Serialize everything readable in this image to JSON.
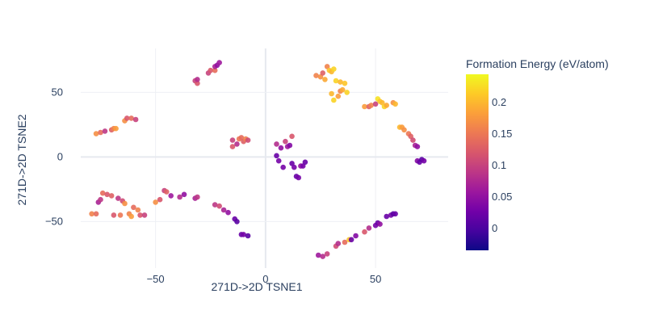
{
  "chart_data": {
    "type": "scatter",
    "title": "",
    "xlabel": "271D->2D TSNE1",
    "ylabel": "271D->2D TSNE2",
    "xlim": [
      -84,
      83
    ],
    "ylim": [
      -86,
      84
    ],
    "xticks": [
      -50,
      0,
      50
    ],
    "yticks": [
      -50,
      0,
      50
    ],
    "xtick_labels": [
      "−50",
      "0",
      "50"
    ],
    "ytick_labels": [
      "−50",
      "0",
      "50"
    ],
    "grid": true,
    "colorbar": {
      "title": "Formation Energy (eV/atom)",
      "range": [
        -0.035,
        0.245
      ],
      "ticks": [
        0,
        0.05,
        0.1,
        0.15,
        0.2
      ],
      "tick_labels": [
        "0",
        "0.05",
        "0.1",
        "0.15",
        "0.2"
      ],
      "colorscale": [
        "#0d0887",
        "#46039f",
        "#7201a8",
        "#9c179e",
        "#bd3786",
        "#d8576b",
        "#ed7953",
        "#fb9f3a",
        "#fdca26",
        "#f0f921"
      ]
    },
    "points": [
      {
        "x": -77,
        "y": 18,
        "c": 0.17
      },
      {
        "x": -75,
        "y": 19,
        "c": 0.14
      },
      {
        "x": -73,
        "y": 20,
        "c": 0.09
      },
      {
        "x": -70,
        "y": 21,
        "c": 0.13
      },
      {
        "x": -69,
        "y": 22,
        "c": 0.16
      },
      {
        "x": -68,
        "y": 22,
        "c": 0.18
      },
      {
        "x": -64,
        "y": 28,
        "c": 0.17
      },
      {
        "x": -63,
        "y": 30,
        "c": 0.12
      },
      {
        "x": -61,
        "y": 30,
        "c": 0.14
      },
      {
        "x": -59,
        "y": 29,
        "c": 0.1
      },
      {
        "x": -32,
        "y": 59,
        "c": 0.1
      },
      {
        "x": -31,
        "y": 57,
        "c": 0.12
      },
      {
        "x": -31,
        "y": 60,
        "c": 0.08
      },
      {
        "x": -26,
        "y": 65,
        "c": 0.1
      },
      {
        "x": -25,
        "y": 67,
        "c": 0.12
      },
      {
        "x": -23,
        "y": 67,
        "c": 0.14
      },
      {
        "x": -23,
        "y": 70,
        "c": 0.07
      },
      {
        "x": -22,
        "y": 71,
        "c": 0.05
      },
      {
        "x": -21,
        "y": 73,
        "c": 0.06
      },
      {
        "x": -15,
        "y": 8,
        "c": 0.12
      },
      {
        "x": -15,
        "y": 13,
        "c": 0.1
      },
      {
        "x": -13,
        "y": 10,
        "c": 0.08
      },
      {
        "x": -12,
        "y": 14,
        "c": 0.15
      },
      {
        "x": -11,
        "y": 15,
        "c": 0.14
      },
      {
        "x": -10,
        "y": 12,
        "c": 0.13
      },
      {
        "x": -9,
        "y": 14,
        "c": 0.16
      },
      {
        "x": -8,
        "y": 13,
        "c": 0.11
      },
      {
        "x": 5,
        "y": 10,
        "c": 0.08
      },
      {
        "x": 5,
        "y": 1,
        "c": 0.02
      },
      {
        "x": 6,
        "y": -3,
        "c": 0.03
      },
      {
        "x": 7,
        "y": 7,
        "c": 0.05
      },
      {
        "x": 8,
        "y": -8,
        "c": 0.03
      },
      {
        "x": 9,
        "y": 12,
        "c": 0.1
      },
      {
        "x": 10,
        "y": 8,
        "c": 0.06
      },
      {
        "x": 11,
        "y": 9,
        "c": 0.04
      },
      {
        "x": 12,
        "y": -5,
        "c": 0.02
      },
      {
        "x": 12,
        "y": 16,
        "c": 0.12
      },
      {
        "x": 13,
        "y": -8,
        "c": 0.03
      },
      {
        "x": 14,
        "y": -15,
        "c": 0.02
      },
      {
        "x": 15,
        "y": -16,
        "c": 0.03
      },
      {
        "x": 16,
        "y": -7,
        "c": 0.05
      },
      {
        "x": 17,
        "y": -7,
        "c": 0.03
      },
      {
        "x": 18,
        "y": -4,
        "c": 0.02
      },
      {
        "x": 23,
        "y": 63,
        "c": 0.16
      },
      {
        "x": 25,
        "y": 62,
        "c": 0.17
      },
      {
        "x": 26,
        "y": 65,
        "c": 0.13
      },
      {
        "x": 27,
        "y": 60,
        "c": 0.19
      },
      {
        "x": 28,
        "y": 70,
        "c": 0.16
      },
      {
        "x": 29,
        "y": 67,
        "c": 0.21
      },
      {
        "x": 30,
        "y": 66,
        "c": 0.2
      },
      {
        "x": 31,
        "y": 68,
        "c": 0.22
      },
      {
        "x": 32,
        "y": 59,
        "c": 0.22
      },
      {
        "x": 34,
        "y": 58,
        "c": 0.2
      },
      {
        "x": 36,
        "y": 57,
        "c": 0.21
      },
      {
        "x": 30,
        "y": 49,
        "c": 0.2
      },
      {
        "x": 31,
        "y": 44,
        "c": 0.22
      },
      {
        "x": 33,
        "y": 47,
        "c": 0.18
      },
      {
        "x": 34,
        "y": 51,
        "c": 0.16
      },
      {
        "x": 35,
        "y": 52,
        "c": 0.19
      },
      {
        "x": 37,
        "y": 50,
        "c": 0.22
      },
      {
        "x": 45,
        "y": 39,
        "c": 0.18
      },
      {
        "x": 47,
        "y": 39,
        "c": 0.13
      },
      {
        "x": 48,
        "y": 40,
        "c": 0.16
      },
      {
        "x": 50,
        "y": 41,
        "c": 0.1
      },
      {
        "x": 51,
        "y": 45,
        "c": 0.23
      },
      {
        "x": 52,
        "y": 43,
        "c": 0.21
      },
      {
        "x": 53,
        "y": 42,
        "c": 0.2
      },
      {
        "x": 54,
        "y": 39,
        "c": 0.22
      },
      {
        "x": 55,
        "y": 40,
        "c": 0.19
      },
      {
        "x": 58,
        "y": 42,
        "c": 0.17
      },
      {
        "x": 59,
        "y": 41,
        "c": 0.2
      },
      {
        "x": 61,
        "y": 23,
        "c": 0.2
      },
      {
        "x": 62,
        "y": 23,
        "c": 0.18
      },
      {
        "x": 63,
        "y": 21,
        "c": 0.17
      },
      {
        "x": 65,
        "y": 18,
        "c": 0.15
      },
      {
        "x": 66,
        "y": 16,
        "c": 0.13
      },
      {
        "x": 67,
        "y": 13,
        "c": 0.11
      },
      {
        "x": 68,
        "y": 9,
        "c": 0.07
      },
      {
        "x": 69,
        "y": 8,
        "c": 0.05
      },
      {
        "x": 69,
        "y": -3,
        "c": 0.04
      },
      {
        "x": 70,
        "y": -4,
        "c": 0.02
      },
      {
        "x": 71,
        "y": -2,
        "c": 0.01
      },
      {
        "x": 72,
        "y": -3,
        "c": 0.03
      },
      {
        "x": -79,
        "y": -44,
        "c": 0.16
      },
      {
        "x": -77,
        "y": -44,
        "c": 0.14
      },
      {
        "x": -76,
        "y": -35,
        "c": 0.07
      },
      {
        "x": -75,
        "y": -33,
        "c": 0.09
      },
      {
        "x": -74,
        "y": -28,
        "c": 0.14
      },
      {
        "x": -72,
        "y": -29,
        "c": 0.12
      },
      {
        "x": -70,
        "y": -30,
        "c": 0.13
      },
      {
        "x": -69,
        "y": -45,
        "c": 0.12
      },
      {
        "x": -67,
        "y": -32,
        "c": 0.09
      },
      {
        "x": -66,
        "y": -45,
        "c": 0.15
      },
      {
        "x": -65,
        "y": -34,
        "c": 0.11
      },
      {
        "x": -64,
        "y": -36,
        "c": 0.17
      },
      {
        "x": -62,
        "y": -44,
        "c": 0.16
      },
      {
        "x": -61,
        "y": -46,
        "c": 0.18
      },
      {
        "x": -60,
        "y": -39,
        "c": 0.14
      },
      {
        "x": -58,
        "y": -41,
        "c": 0.16
      },
      {
        "x": -57,
        "y": -45,
        "c": 0.12
      },
      {
        "x": -55,
        "y": -45,
        "c": 0.1
      },
      {
        "x": -50,
        "y": -35,
        "c": 0.17
      },
      {
        "x": -48,
        "y": -33,
        "c": 0.12
      },
      {
        "x": -46,
        "y": -26,
        "c": 0.1
      },
      {
        "x": -45,
        "y": -27,
        "c": 0.13
      },
      {
        "x": -43,
        "y": -30,
        "c": 0.06
      },
      {
        "x": -39,
        "y": -31,
        "c": 0.08
      },
      {
        "x": -37,
        "y": -29,
        "c": 0.05
      },
      {
        "x": -32,
        "y": -32,
        "c": 0.07
      },
      {
        "x": -31,
        "y": -31,
        "c": 0.09
      },
      {
        "x": -23,
        "y": -37,
        "c": 0.09
      },
      {
        "x": -21,
        "y": -38,
        "c": 0.11
      },
      {
        "x": -19,
        "y": -41,
        "c": 0.07
      },
      {
        "x": -17,
        "y": -43,
        "c": 0.05
      },
      {
        "x": -14,
        "y": -48,
        "c": 0.02
      },
      {
        "x": -13,
        "y": -50,
        "c": 0.01
      },
      {
        "x": -11,
        "y": -60,
        "c": 0.02
      },
      {
        "x": -10,
        "y": -60,
        "c": 0.03
      },
      {
        "x": -8,
        "y": -61,
        "c": 0.01
      },
      {
        "x": 24,
        "y": -76,
        "c": 0.06
      },
      {
        "x": 26,
        "y": -77,
        "c": 0.08
      },
      {
        "x": 28,
        "y": -75,
        "c": 0.1
      },
      {
        "x": 32,
        "y": -69,
        "c": 0.11
      },
      {
        "x": 33,
        "y": -67,
        "c": 0.08
      },
      {
        "x": 36,
        "y": -66,
        "c": 0.14
      },
      {
        "x": 38,
        "y": -64,
        "c": 0.21
      },
      {
        "x": 39,
        "y": -64,
        "c": 0.02
      },
      {
        "x": 41,
        "y": -61,
        "c": 0.04
      },
      {
        "x": 45,
        "y": -58,
        "c": 0.12
      },
      {
        "x": 47,
        "y": -55,
        "c": 0.08
      },
      {
        "x": 50,
        "y": -53,
        "c": 0.03
      },
      {
        "x": 51,
        "y": -51,
        "c": 0.02
      },
      {
        "x": 52,
        "y": -52,
        "c": 0.05
      },
      {
        "x": 55,
        "y": -46,
        "c": 0.02
      },
      {
        "x": 57,
        "y": -45,
        "c": 0.03
      },
      {
        "x": 58,
        "y": -44,
        "c": 0.01
      },
      {
        "x": 59,
        "y": -44,
        "c": 0.02
      }
    ]
  }
}
